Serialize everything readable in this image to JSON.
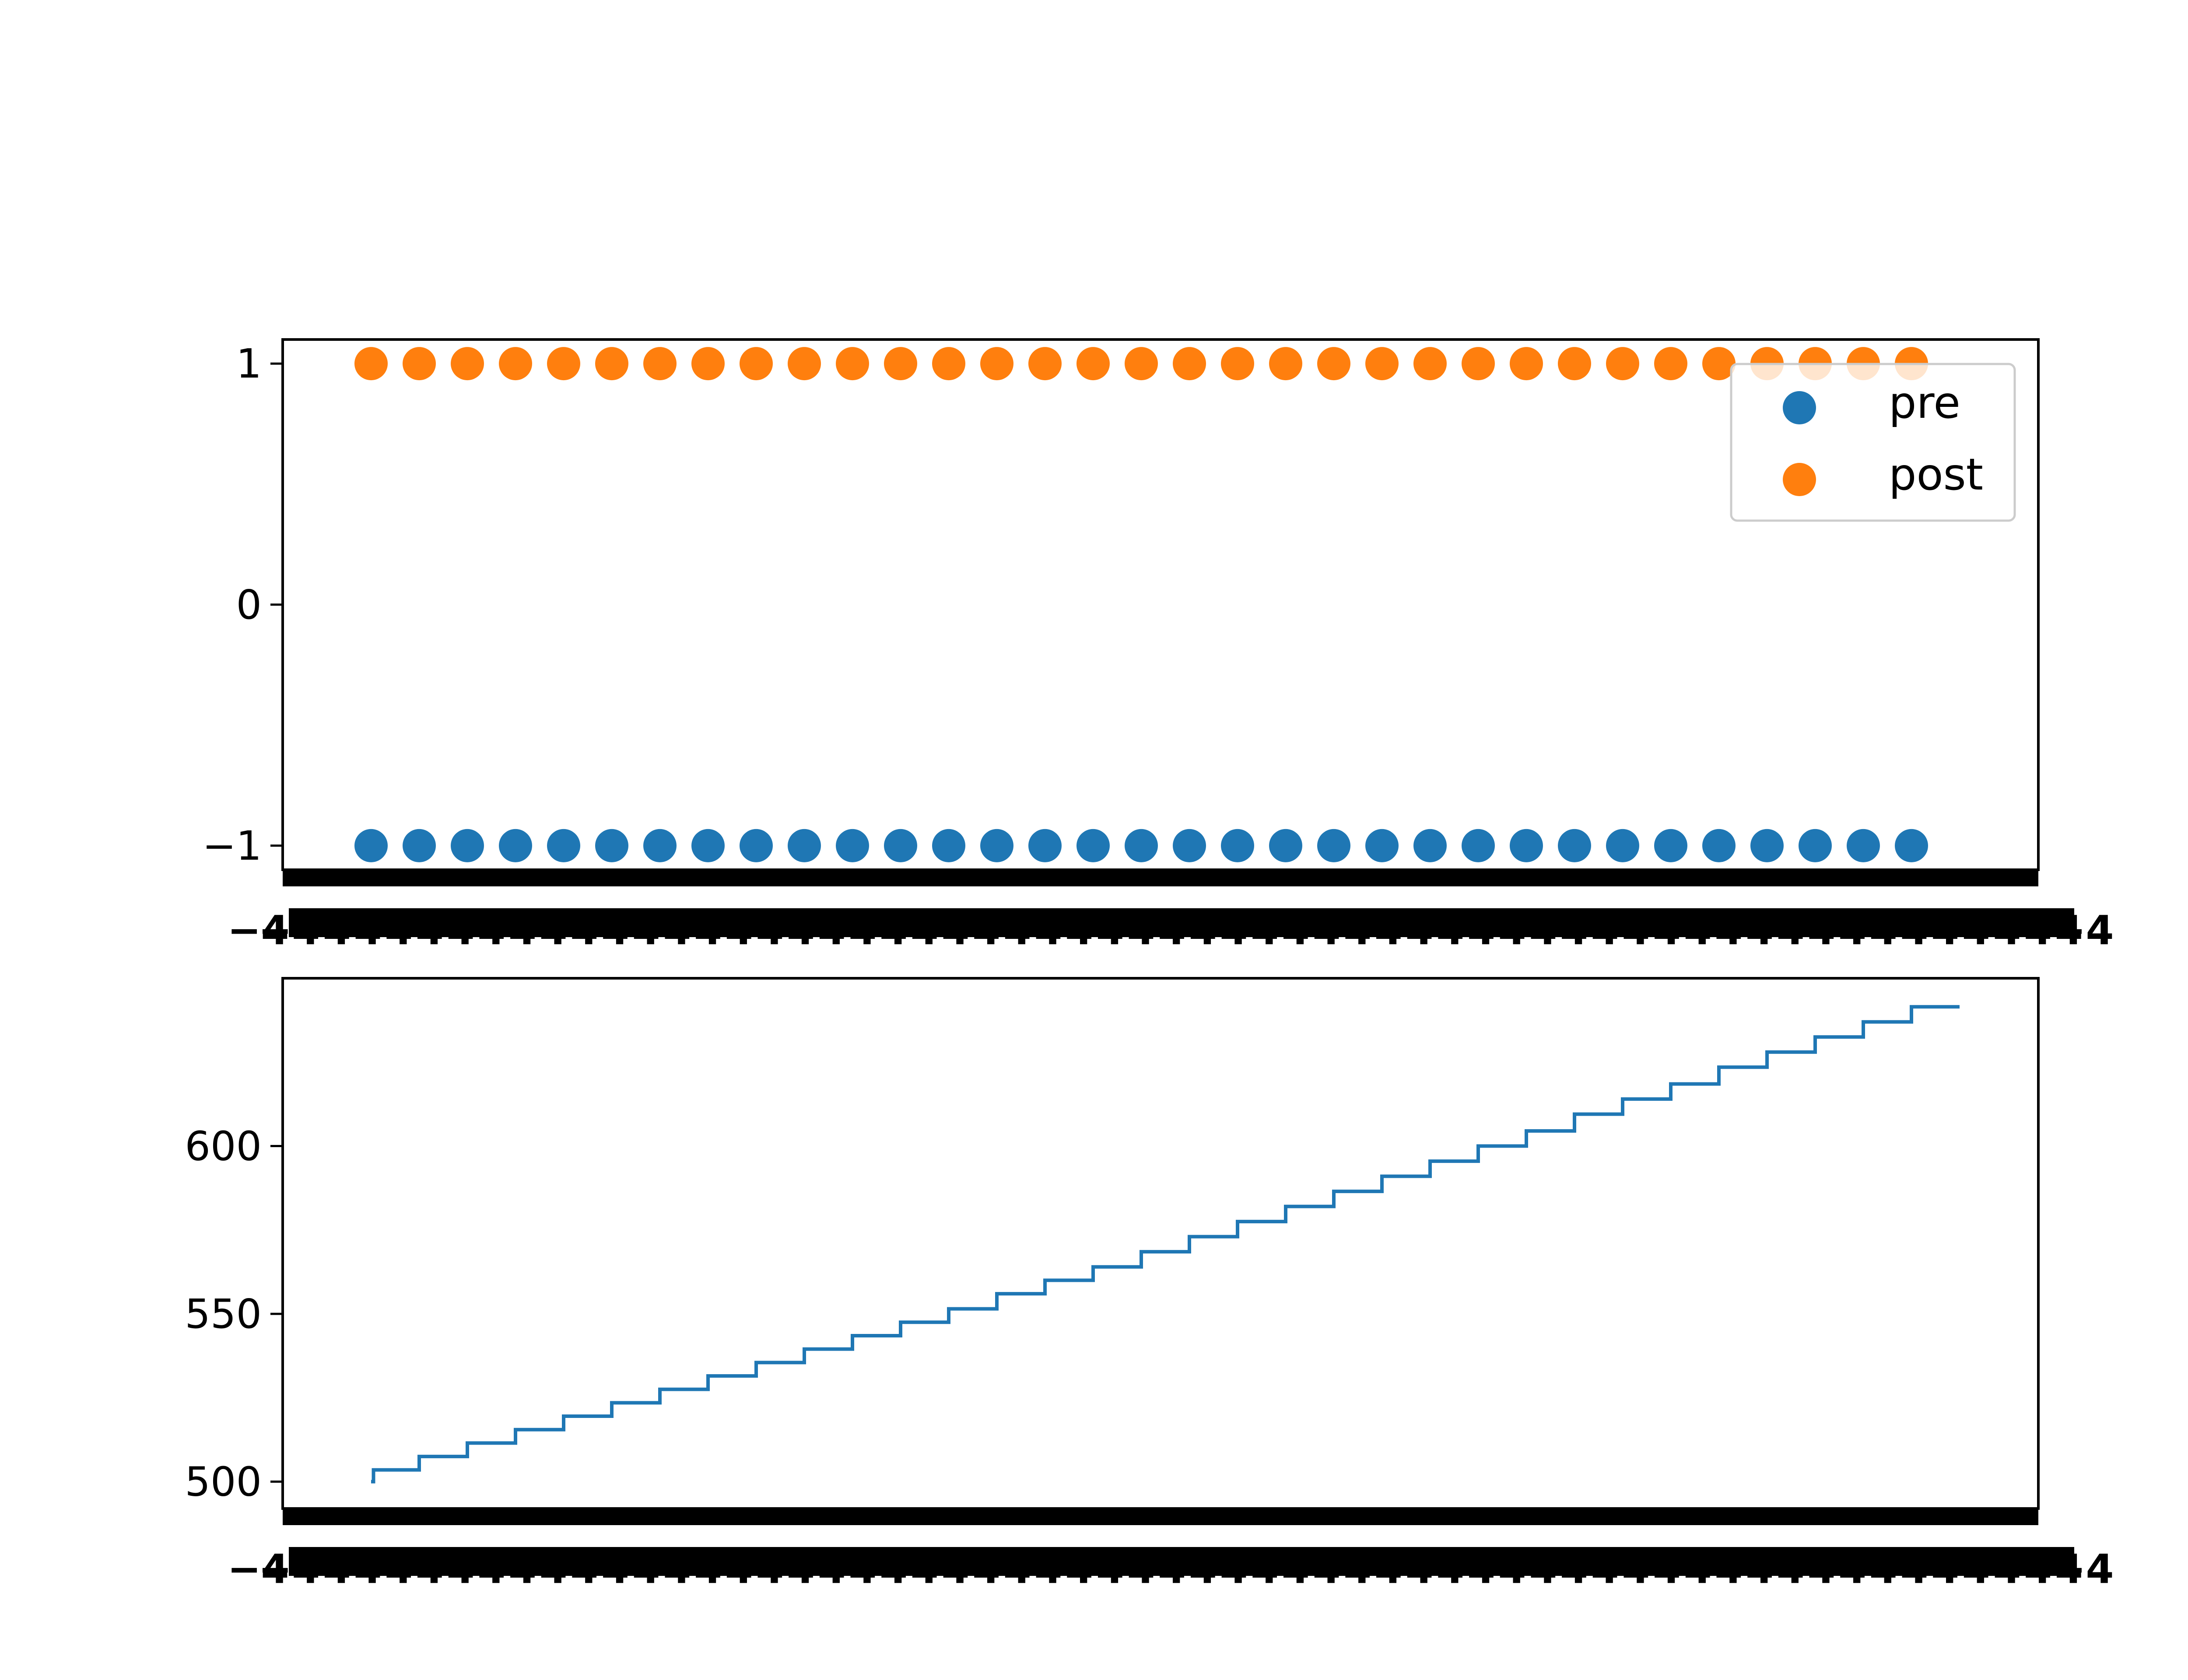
{
  "chart_data": [
    {
      "type": "scatter",
      "x": [
        0,
        1,
        2,
        3,
        4,
        5,
        6,
        7,
        8,
        9,
        10,
        11,
        12,
        13,
        14,
        15,
        16,
        17,
        18,
        19,
        20,
        21,
        22,
        23,
        24,
        25,
        26,
        27,
        28,
        29,
        30,
        31,
        32
      ],
      "ylim": [
        -1.1,
        1.1
      ],
      "yticks": [
        -1,
        0,
        1
      ],
      "ytick_labels": [
        "−1",
        "0",
        "1"
      ],
      "series": [
        {
          "name": "pre",
          "color": "#1f77b4",
          "y": [
            -1,
            -1,
            -1,
            -1,
            -1,
            -1,
            -1,
            -1,
            -1,
            -1,
            -1,
            -1,
            -1,
            -1,
            -1,
            -1,
            -1,
            -1,
            -1,
            -1,
            -1,
            -1,
            -1,
            -1,
            -1,
            -1,
            -1,
            -1,
            -1,
            -1,
            -1,
            -1,
            -1
          ]
        },
        {
          "name": "post",
          "color": "#ff7f0e",
          "y": [
            1,
            1,
            1,
            1,
            1,
            1,
            1,
            1,
            1,
            1,
            1,
            1,
            1,
            1,
            1,
            1,
            1,
            1,
            1,
            1,
            1,
            1,
            1,
            1,
            1,
            1,
            1,
            1,
            1,
            1,
            1,
            1,
            1
          ]
        }
      ],
      "legend": {
        "position": "upper-right",
        "entries": [
          "pre",
          "post"
        ]
      },
      "grid": false,
      "xtick_label_text": "−4"
    },
    {
      "type": "line",
      "drawstyle": "steps-post",
      "color": "#1f77b4",
      "x": [
        0,
        0.05,
        1,
        2,
        3,
        4,
        5,
        6,
        7,
        8,
        9,
        10,
        11,
        12,
        13,
        14,
        15,
        16,
        17,
        18,
        19,
        20,
        21,
        22,
        23,
        24,
        25,
        26,
        27,
        28,
        29,
        30,
        31,
        32,
        33
      ],
      "y": [
        500,
        503.5,
        507.5,
        511.5,
        515.5,
        519.5,
        523.5,
        527.5,
        531.5,
        535.5,
        539.5,
        543.5,
        547.5,
        551.5,
        556,
        560,
        564,
        568.5,
        573,
        577.5,
        582,
        586.5,
        591,
        595.5,
        600,
        604.5,
        609.5,
        614,
        618.5,
        623.5,
        628,
        632.5,
        637,
        641.5,
        641.5
      ],
      "ylim": [
        492,
        650
      ],
      "yticks": [
        500,
        550,
        600
      ],
      "ytick_labels": [
        "500",
        "550",
        "600"
      ],
      "grid": false,
      "xtick_label_text": "−4"
    }
  ]
}
